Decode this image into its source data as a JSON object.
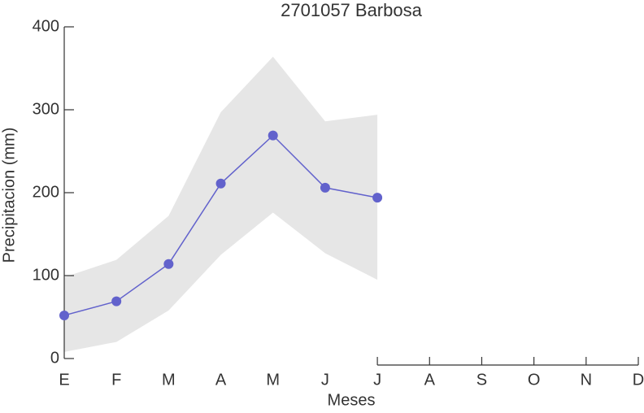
{
  "chart_data": {
    "type": "line",
    "title": "2701057 Barbosa",
    "xlabel": "Meses",
    "ylabel": "Precipitacion (mm)",
    "categories": [
      "E",
      "F",
      "M",
      "A",
      "M",
      "J",
      "J",
      "A",
      "S",
      "O",
      "N",
      "D"
    ],
    "series": [
      {
        "color": "#6262cc",
        "values": [
          52,
          69,
          114,
          211,
          269,
          206,
          194,
          null,
          null,
          null,
          null,
          null
        ]
      }
    ],
    "band": {
      "color": "#e6e6e6",
      "upper": [
        98,
        119,
        172,
        297,
        364,
        286,
        294,
        null,
        null,
        null,
        null,
        null
      ],
      "lower": [
        8,
        20,
        58,
        125,
        176,
        127,
        95,
        null,
        null,
        null,
        null,
        null
      ]
    },
    "ylim": [
      0,
      400
    ],
    "yticks": [
      0,
      100,
      200,
      300,
      400
    ],
    "grid": false
  }
}
